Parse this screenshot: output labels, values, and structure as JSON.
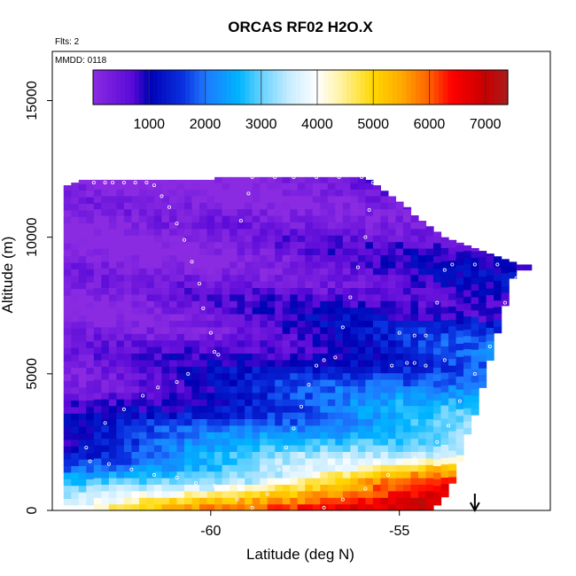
{
  "chart_data": {
    "type": "heatmap",
    "title": "ORCAS RF02 H2O.X",
    "annotations": {
      "flights": "Flts: 2",
      "date": "MMDD: 0118"
    },
    "xlabel": "Latitude (deg N)",
    "ylabel": "Altitude (m)",
    "xlim": [
      -64.2,
      -51.0
    ],
    "ylim": [
      0,
      16800
    ],
    "x_ticks": [
      -60,
      -55
    ],
    "y_ticks": [
      0,
      5000,
      10000,
      15000
    ],
    "x_tick_labels": [
      "-60",
      "-55"
    ],
    "y_tick_labels": [
      "0",
      "5000",
      "10000",
      "15000"
    ],
    "colorbar": {
      "range": [
        0,
        7400
      ],
      "ticks": [
        1000,
        2000,
        3000,
        4000,
        5000,
        6000,
        7000
      ],
      "tick_labels": [
        "1000",
        "2000",
        "3000",
        "4000",
        "5000",
        "6000",
        "7000"
      ],
      "stops": [
        {
          "v": 0,
          "c": "#8a2be2"
        },
        {
          "v": 700,
          "c": "#5a0ad8"
        },
        {
          "v": 1000,
          "c": "#0000b4"
        },
        {
          "v": 1600,
          "c": "#0a30e0"
        },
        {
          "v": 2000,
          "c": "#1e78ff"
        },
        {
          "v": 2600,
          "c": "#00b4ff"
        },
        {
          "v": 3000,
          "c": "#64d2ff"
        },
        {
          "v": 3500,
          "c": "#c8ecff"
        },
        {
          "v": 4000,
          "c": "#ffffff"
        },
        {
          "v": 4400,
          "c": "#fff3a8"
        },
        {
          "v": 5000,
          "c": "#ffd700"
        },
        {
          "v": 5500,
          "c": "#ffaa00"
        },
        {
          "v": 6000,
          "c": "#ff6000"
        },
        {
          "v": 6400,
          "c": "#ff0000"
        },
        {
          "v": 7000,
          "c": "#c80000"
        },
        {
          "v": 7400,
          "c": "#aa1c1c"
        }
      ]
    },
    "columns_lat": [
      -63.8,
      -63.6,
      -63.4,
      -63.2,
      -63.0,
      -62.8,
      -62.6,
      -62.4,
      -62.2,
      -62.0,
      -61.8,
      -61.6,
      -61.4,
      -61.2,
      -61.0,
      -60.8,
      -60.6,
      -60.4,
      -60.2,
      -60.0,
      -59.8,
      -59.6,
      -59.4,
      -59.2,
      -59.0,
      -58.8,
      -58.6,
      -58.4,
      -58.2,
      -58.0,
      -57.8,
      -57.6,
      -57.4,
      -57.2,
      -57.0,
      -56.8,
      -56.6,
      -56.4,
      -56.2,
      -56.0,
      -55.8,
      -55.6,
      -55.4,
      -55.2,
      -55.0,
      -54.8,
      -54.6,
      -54.4,
      -54.2,
      -54.0,
      -53.8,
      -53.6,
      -53.4,
      -53.2,
      -53.0,
      -52.8,
      -52.6,
      -52.4,
      -52.2,
      -52.0,
      -51.8,
      -51.6
    ],
    "column_top_alt": [
      11900,
      12000,
      12100,
      12100,
      12100,
      12100,
      12100,
      12100,
      12100,
      12100,
      12100,
      12100,
      12100,
      12100,
      12100,
      12100,
      12100,
      12100,
      12100,
      12100,
      12200,
      12200,
      12200,
      12200,
      12200,
      12200,
      12200,
      12200,
      12200,
      12200,
      12200,
      12200,
      12200,
      12200,
      12200,
      12200,
      12200,
      12200,
      12200,
      12200,
      12100,
      11900,
      11700,
      11500,
      11300,
      11100,
      10800,
      10600,
      10400,
      10200,
      10000,
      9900,
      9800,
      9700,
      9600,
      9500,
      9400,
      9300,
      9200,
      9100,
      9000,
      9000
    ],
    "column_bottom_alt": [
      200,
      200,
      200,
      200,
      0,
      0,
      0,
      0,
      0,
      0,
      0,
      0,
      0,
      0,
      0,
      0,
      0,
      0,
      0,
      0,
      0,
      0,
      0,
      0,
      0,
      0,
      0,
      0,
      0,
      0,
      0,
      0,
      0,
      0,
      0,
      0,
      0,
      0,
      0,
      0,
      0,
      0,
      0,
      0,
      0,
      0,
      0,
      0,
      0,
      200,
      500,
      1000,
      1800,
      2800,
      3500,
      4500,
      5500,
      6500,
      7500,
      8500,
      8800,
      8800
    ],
    "flight_track": [
      [
        -63.1,
        12000
      ],
      [
        -62.8,
        12000
      ],
      [
        -62.6,
        12000
      ],
      [
        -62.3,
        12000
      ],
      [
        -62.0,
        12000
      ],
      [
        -61.7,
        12000
      ],
      [
        -61.5,
        11900
      ],
      [
        -61.3,
        11500
      ],
      [
        -61.1,
        11100
      ],
      [
        -60.9,
        10500
      ],
      [
        -60.7,
        9900
      ],
      [
        -60.5,
        9100
      ],
      [
        -60.3,
        8300
      ],
      [
        -60.2,
        7400
      ],
      [
        -60.0,
        6500
      ],
      [
        -59.9,
        5800
      ],
      [
        -59.8,
        5700
      ],
      [
        -60.6,
        5000
      ],
      [
        -60.9,
        4700
      ],
      [
        -61.4,
        4500
      ],
      [
        -61.8,
        4200
      ],
      [
        -62.3,
        3700
      ],
      [
        -62.8,
        3200
      ],
      [
        -63.3,
        2300
      ],
      [
        -63.2,
        1800
      ],
      [
        -62.7,
        1700
      ],
      [
        -62.1,
        1500
      ],
      [
        -61.5,
        1300
      ],
      [
        -60.9,
        1200
      ],
      [
        -60.4,
        1000
      ],
      [
        -59.9,
        900
      ],
      [
        -59.3,
        400
      ],
      [
        -58.9,
        100
      ],
      [
        -58.5,
        600
      ],
      [
        -58.2,
        1500
      ],
      [
        -58.0,
        2300
      ],
      [
        -57.8,
        3000
      ],
      [
        -57.6,
        3800
      ],
      [
        -57.4,
        4600
      ],
      [
        -57.2,
        5300
      ],
      [
        -57.0,
        5500
      ],
      [
        -56.7,
        5600
      ],
      [
        -56.5,
        6700
      ],
      [
        -56.3,
        7800
      ],
      [
        -56.1,
        8900
      ],
      [
        -55.9,
        10000
      ],
      [
        -55.8,
        11000
      ],
      [
        -55.7,
        12000
      ],
      [
        -56.0,
        12200
      ],
      [
        -56.6,
        12200
      ],
      [
        -57.2,
        12200
      ],
      [
        -57.8,
        12200
      ],
      [
        -58.3,
        12200
      ],
      [
        -58.9,
        12200
      ],
      [
        -59.0,
        11600
      ],
      [
        -59.2,
        10600
      ],
      [
        -54.6,
        5400
      ],
      [
        -54.3,
        6400
      ],
      [
        -54.0,
        7600
      ],
      [
        -53.8,
        8800
      ],
      [
        -53.6,
        9000
      ],
      [
        -53.0,
        9000
      ],
      [
        -52.4,
        9000
      ],
      [
        -51.8,
        9100
      ],
      [
        -51.5,
        9100
      ],
      [
        -51.9,
        8500
      ],
      [
        -52.2,
        7600
      ],
      [
        -52.6,
        6000
      ],
      [
        -53.0,
        5000
      ],
      [
        -53.4,
        4000
      ],
      [
        -53.7,
        3100
      ],
      [
        -54.0,
        2500
      ],
      [
        -54.6,
        1900
      ],
      [
        -55.3,
        1300
      ],
      [
        -55.9,
        800
      ],
      [
        -56.5,
        400
      ],
      [
        -57.0,
        100
      ],
      [
        -55.2,
        5300
      ],
      [
        -54.8,
        5400
      ],
      [
        -54.3,
        5300
      ],
      [
        -53.8,
        5500
      ],
      [
        -55.0,
        6500
      ],
      [
        -54.6,
        6400
      ]
    ],
    "arrow_lat": -53.0
  }
}
